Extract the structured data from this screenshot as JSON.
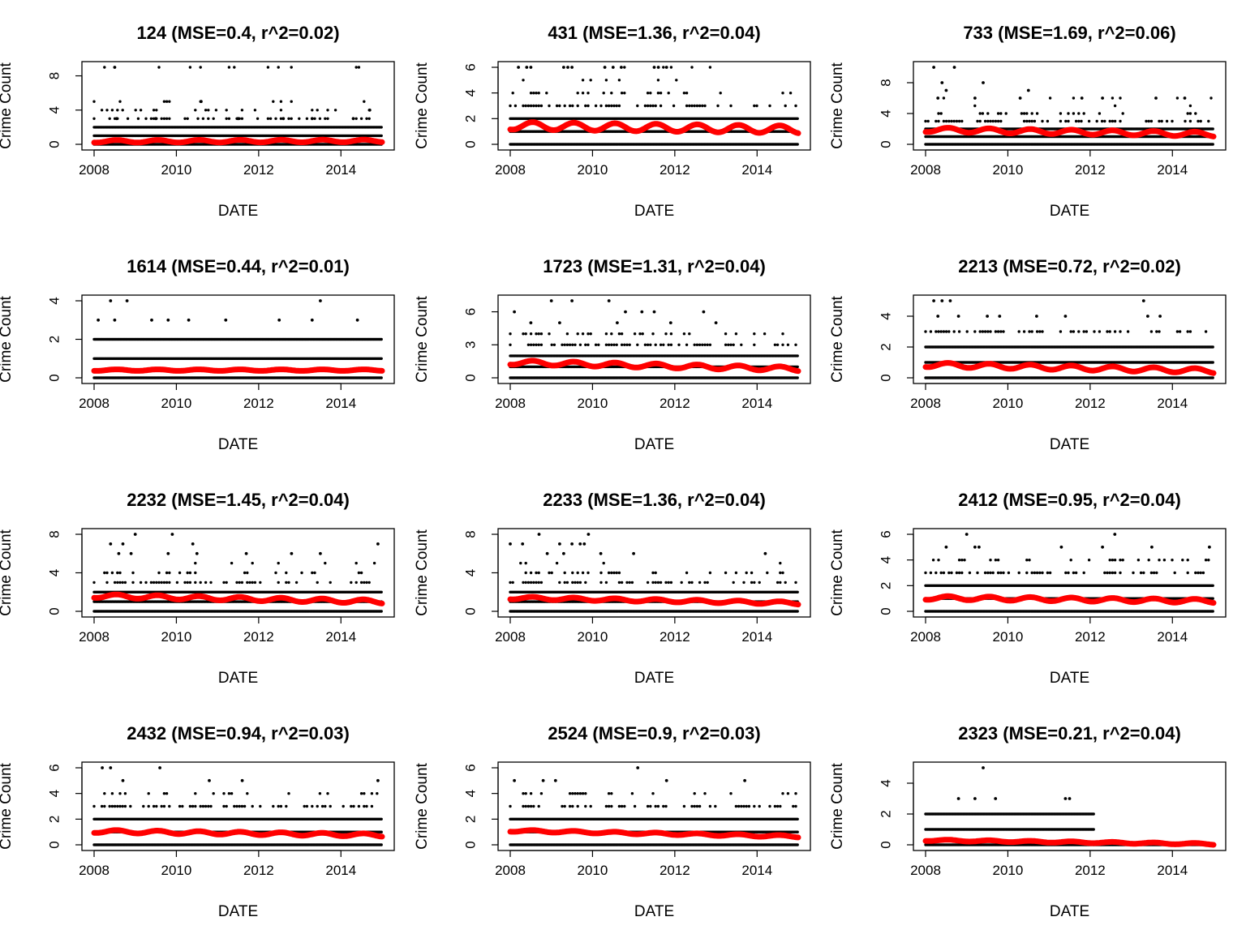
{
  "chart_data": [
    {
      "type": "scatter",
      "title": "124 (MSE=0.4, r^2=0.02)",
      "xlabel": "DATE",
      "ylabel": "Crime Count",
      "xlim": [
        2008,
        2015
      ],
      "ylim": [
        0,
        9
      ],
      "xticks": [
        2008,
        2010,
        2012,
        2014
      ],
      "xtick_labels": [
        "2008",
        "2010",
        "2012",
        "2014"
      ],
      "yticks": [
        0,
        4,
        8
      ],
      "ytick_labels": [
        "0",
        "4",
        "8"
      ],
      "points_color": "#000000",
      "fit_color": "#ff0000",
      "count_levels": [
        0,
        1,
        2,
        3,
        4,
        5,
        9
      ],
      "outliers": [
        [
          2008.5,
          9
        ],
        [
          2010.6,
          5
        ],
        [
          2014.7,
          4
        ],
        [
          2008.55,
          3
        ],
        [
          2009.5,
          3
        ],
        [
          2011.5,
          3
        ],
        [
          2012.6,
          3
        ],
        [
          2013.3,
          3
        ],
        [
          2014.3,
          3
        ]
      ],
      "fit": {
        "base_start": 0.35,
        "base_end": 0.4,
        "amplitude": 0.15,
        "period_years": 1.0
      }
    },
    {
      "type": "scatter",
      "title": "431 (MSE=1.36, r^2=0.04)",
      "xlabel": "DATE",
      "ylabel": "Crime Count",
      "xlim": [
        2008,
        2015
      ],
      "ylim": [
        0,
        6
      ],
      "xticks": [
        2008,
        2010,
        2012,
        2014
      ],
      "xtick_labels": [
        "2008",
        "2010",
        "2012",
        "2014"
      ],
      "yticks": [
        0,
        2,
        4,
        6
      ],
      "ytick_labels": [
        "0",
        "2",
        "4",
        "6"
      ],
      "points_color": "#000000",
      "fit_color": "#ff0000",
      "count_levels": [
        0,
        1,
        2,
        3,
        4,
        5,
        6
      ],
      "outliers": [
        [
          2008.2,
          6
        ],
        [
          2008.4,
          6
        ],
        [
          2008.5,
          6
        ],
        [
          2009.3,
          6
        ],
        [
          2009.4,
          6
        ],
        [
          2009.5,
          6
        ],
        [
          2010.3,
          6
        ],
        [
          2010.5,
          6
        ],
        [
          2010.7,
          6
        ],
        [
          2011.5,
          6
        ],
        [
          2011.6,
          6
        ],
        [
          2011.8,
          6
        ]
      ],
      "fit": {
        "base_start": 1.45,
        "base_end": 1.15,
        "amplitude": 0.3,
        "period_years": 1.0
      }
    },
    {
      "type": "scatter",
      "title": "733 (MSE=1.69, r^2=0.06)",
      "xlabel": "DATE",
      "ylabel": "Crime Count",
      "xlim": [
        2008,
        2015
      ],
      "ylim": [
        0,
        10
      ],
      "xticks": [
        2008,
        2010,
        2012,
        2014
      ],
      "xtick_labels": [
        "2008",
        "2010",
        "2012",
        "2014"
      ],
      "yticks": [
        0,
        4,
        8
      ],
      "ytick_labels": [
        "0",
        "4",
        "8"
      ],
      "points_color": "#000000",
      "fit_color": "#ff0000",
      "count_levels": [
        0,
        1,
        2,
        3,
        4,
        5,
        6
      ],
      "outliers": [
        [
          2008.2,
          10
        ],
        [
          2008.7,
          10
        ],
        [
          2008.4,
          8
        ],
        [
          2009.4,
          8
        ],
        [
          2008.5,
          7
        ],
        [
          2010.5,
          7
        ],
        [
          2008.3,
          6
        ],
        [
          2009.2,
          6
        ],
        [
          2010.3,
          6
        ],
        [
          2011.8,
          6
        ],
        [
          2012.3,
          6
        ],
        [
          2013.6,
          6
        ],
        [
          2014.3,
          6
        ]
      ],
      "fit": {
        "base_start": 1.9,
        "base_end": 1.3,
        "amplitude": 0.3,
        "period_years": 1.0
      }
    },
    {
      "type": "scatter",
      "title": "1614 (MSE=0.44, r^2=0.01)",
      "xlabel": "DATE",
      "ylabel": "Crime Count",
      "xlim": [
        2008,
        2015
      ],
      "ylim": [
        0,
        4
      ],
      "xticks": [
        2008,
        2010,
        2012,
        2014
      ],
      "xtick_labels": [
        "2008",
        "2010",
        "2012",
        "2014"
      ],
      "yticks": [
        0,
        2,
        4
      ],
      "ytick_labels": [
        "0",
        "2",
        "4"
      ],
      "points_color": "#000000",
      "fit_color": "#ff0000",
      "count_levels": [
        0,
        1,
        2
      ],
      "outliers": [
        [
          2008.4,
          4
        ],
        [
          2008.8,
          4
        ],
        [
          2013.5,
          4
        ],
        [
          2008.1,
          3
        ],
        [
          2008.5,
          3
        ],
        [
          2009.4,
          3
        ],
        [
          2009.8,
          3
        ],
        [
          2010.3,
          3
        ],
        [
          2011.2,
          3
        ],
        [
          2012.5,
          3
        ],
        [
          2013.3,
          3
        ],
        [
          2014.4,
          3
        ]
      ],
      "fit": {
        "base_start": 0.4,
        "base_end": 0.4,
        "amplitude": 0.04,
        "period_years": 1.0
      }
    },
    {
      "type": "scatter",
      "title": "1723 (MSE=1.31, r^2=0.04)",
      "xlabel": "DATE",
      "ylabel": "Crime Count",
      "xlim": [
        2008,
        2015
      ],
      "ylim": [
        0,
        7
      ],
      "xticks": [
        2008,
        2010,
        2012,
        2014
      ],
      "xtick_labels": [
        "2008",
        "2010",
        "2012",
        "2014"
      ],
      "yticks": [
        0,
        3,
        6
      ],
      "ytick_labels": [
        "0",
        "3",
        "6"
      ],
      "points_color": "#000000",
      "fit_color": "#ff0000",
      "count_levels": [
        0,
        1,
        2,
        3,
        4
      ],
      "outliers": [
        [
          2009.0,
          7
        ],
        [
          2009.5,
          7
        ],
        [
          2010.4,
          7
        ],
        [
          2008.1,
          6
        ],
        [
          2010.8,
          6
        ],
        [
          2011.2,
          6
        ],
        [
          2011.5,
          6
        ],
        [
          2012.7,
          6
        ],
        [
          2008.5,
          5
        ],
        [
          2009.2,
          5
        ],
        [
          2010.6,
          5
        ],
        [
          2011.9,
          5
        ],
        [
          2013.0,
          5
        ]
      ],
      "fit": {
        "base_start": 1.4,
        "base_end": 0.8,
        "amplitude": 0.2,
        "period_years": 1.0
      }
    },
    {
      "type": "scatter",
      "title": "2213 (MSE=0.72, r^2=0.02)",
      "xlabel": "DATE",
      "ylabel": "Crime Count",
      "xlim": [
        2008,
        2015
      ],
      "ylim": [
        0,
        5
      ],
      "xticks": [
        2008,
        2010,
        2012,
        2014
      ],
      "xtick_labels": [
        "2008",
        "2010",
        "2012",
        "2014"
      ],
      "yticks": [
        0,
        2,
        4
      ],
      "ytick_labels": [
        "0",
        "2",
        "4"
      ],
      "points_color": "#000000",
      "fit_color": "#ff0000",
      "count_levels": [
        0,
        1,
        2,
        3
      ],
      "outliers": [
        [
          2008.2,
          5
        ],
        [
          2008.4,
          5
        ],
        [
          2008.6,
          5
        ],
        [
          2013.3,
          5
        ],
        [
          2008.3,
          4
        ],
        [
          2008.8,
          4
        ],
        [
          2009.5,
          4
        ],
        [
          2009.8,
          4
        ],
        [
          2010.7,
          4
        ],
        [
          2011.4,
          4
        ],
        [
          2013.4,
          4
        ],
        [
          2013.7,
          4
        ]
      ],
      "fit": {
        "base_start": 0.85,
        "base_end": 0.45,
        "amplitude": 0.15,
        "period_years": 1.0
      }
    },
    {
      "type": "scatter",
      "title": "2232 (MSE=1.45, r^2=0.04)",
      "xlabel": "DATE",
      "ylabel": "Crime Count",
      "xlim": [
        2008,
        2015
      ],
      "ylim": [
        0,
        8
      ],
      "xticks": [
        2008,
        2010,
        2012,
        2014
      ],
      "xtick_labels": [
        "2008",
        "2010",
        "2012",
        "2014"
      ],
      "yticks": [
        0,
        4,
        8
      ],
      "ytick_labels": [
        "0",
        "4",
        "8"
      ],
      "points_color": "#000000",
      "fit_color": "#ff0000",
      "count_levels": [
        0,
        1,
        2,
        3,
        4,
        5
      ],
      "outliers": [
        [
          2009.0,
          8
        ],
        [
          2009.9,
          8
        ],
        [
          2008.4,
          7
        ],
        [
          2008.7,
          7
        ],
        [
          2010.4,
          7
        ],
        [
          2014.9,
          7
        ],
        [
          2008.6,
          6
        ],
        [
          2008.9,
          6
        ],
        [
          2009.8,
          6
        ],
        [
          2010.5,
          6
        ],
        [
          2011.7,
          6
        ],
        [
          2012.8,
          6
        ],
        [
          2013.5,
          6
        ]
      ],
      "fit": {
        "base_start": 1.6,
        "base_end": 1.0,
        "amplitude": 0.2,
        "period_years": 1.0
      }
    },
    {
      "type": "scatter",
      "title": "2233 (MSE=1.36, r^2=0.04)",
      "xlabel": "DATE",
      "ylabel": "Crime Count",
      "xlim": [
        2008,
        2015
      ],
      "ylim": [
        0,
        8
      ],
      "xticks": [
        2008,
        2010,
        2012,
        2014
      ],
      "xtick_labels": [
        "2008",
        "2010",
        "2012",
        "2014"
      ],
      "yticks": [
        0,
        4,
        8
      ],
      "ytick_labels": [
        "0",
        "4",
        "8"
      ],
      "points_color": "#000000",
      "fit_color": "#ff0000",
      "count_levels": [
        0,
        1,
        2,
        3,
        4,
        5
      ],
      "outliers": [
        [
          2009.9,
          8
        ],
        [
          2008.7,
          8
        ],
        [
          2008.0,
          7
        ],
        [
          2008.3,
          7
        ],
        [
          2009.2,
          7
        ],
        [
          2009.5,
          7
        ],
        [
          2009.7,
          7
        ],
        [
          2009.8,
          7
        ],
        [
          2008.9,
          6
        ],
        [
          2009.3,
          6
        ],
        [
          2010.2,
          6
        ],
        [
          2011.0,
          6
        ],
        [
          2014.2,
          6
        ]
      ],
      "fit": {
        "base_start": 1.4,
        "base_end": 0.85,
        "amplitude": 0.15,
        "period_years": 1.0
      }
    },
    {
      "type": "scatter",
      "title": "2412 (MSE=0.95, r^2=0.04)",
      "xlabel": "DATE",
      "ylabel": "Crime Count",
      "xlim": [
        2008,
        2015
      ],
      "ylim": [
        0,
        6
      ],
      "xticks": [
        2008,
        2010,
        2012,
        2014
      ],
      "xtick_labels": [
        "2008",
        "2010",
        "2012",
        "2014"
      ],
      "yticks": [
        0,
        2,
        4,
        6
      ],
      "ytick_labels": [
        "0",
        "2",
        "4",
        "6"
      ],
      "points_color": "#000000",
      "fit_color": "#ff0000",
      "count_levels": [
        0,
        1,
        2,
        3,
        4
      ],
      "outliers": [
        [
          2009.0,
          6
        ],
        [
          2012.6,
          6
        ],
        [
          2008.5,
          5
        ],
        [
          2009.2,
          5
        ],
        [
          2009.3,
          5
        ],
        [
          2011.3,
          5
        ],
        [
          2012.3,
          5
        ],
        [
          2013.5,
          5
        ],
        [
          2014.9,
          5
        ]
      ],
      "fit": {
        "base_start": 1.05,
        "base_end": 0.8,
        "amplitude": 0.15,
        "period_years": 1.0
      }
    },
    {
      "type": "scatter",
      "title": "2432 (MSE=0.94, r^2=0.03)",
      "xlabel": "DATE",
      "ylabel": "Crime Count",
      "xlim": [
        2008,
        2015
      ],
      "ylim": [
        0,
        6
      ],
      "xticks": [
        2008,
        2010,
        2012,
        2014
      ],
      "xtick_labels": [
        "2008",
        "2010",
        "2012",
        "2014"
      ],
      "yticks": [
        0,
        2,
        4,
        6
      ],
      "ytick_labels": [
        "0",
        "2",
        "4",
        "6"
      ],
      "points_color": "#000000",
      "fit_color": "#ff0000",
      "count_levels": [
        0,
        1,
        2,
        3,
        4
      ],
      "outliers": [
        [
          2008.2,
          6
        ],
        [
          2008.4,
          6
        ],
        [
          2009.6,
          6
        ],
        [
          2010.8,
          5
        ],
        [
          2011.6,
          5
        ],
        [
          2014.9,
          5
        ],
        [
          2008.7,
          5
        ]
      ],
      "fit": {
        "base_start": 1.05,
        "base_end": 0.75,
        "amplitude": 0.12,
        "period_years": 1.0
      }
    },
    {
      "type": "scatter",
      "title": "2524 (MSE=0.9, r^2=0.03)",
      "xlabel": "DATE",
      "ylabel": "Crime Count",
      "xlim": [
        2008,
        2015
      ],
      "ylim": [
        0,
        6
      ],
      "xticks": [
        2008,
        2010,
        2012,
        2014
      ],
      "xtick_labels": [
        "2008",
        "2010",
        "2012",
        "2014"
      ],
      "yticks": [
        0,
        2,
        4,
        6
      ],
      "ytick_labels": [
        "0",
        "2",
        "4",
        "6"
      ],
      "points_color": "#000000",
      "fit_color": "#ff0000",
      "count_levels": [
        0,
        1,
        2,
        3,
        4
      ],
      "outliers": [
        [
          2011.1,
          6
        ],
        [
          2008.1,
          5
        ],
        [
          2008.8,
          5
        ],
        [
          2009.1,
          5
        ],
        [
          2011.8,
          5
        ],
        [
          2013.7,
          5
        ]
      ],
      "fit": {
        "base_start": 1.1,
        "base_end": 0.65,
        "amplitude": 0.08,
        "period_years": 1.0
      }
    },
    {
      "type": "scatter",
      "title": "2323 (MSE=0.21, r^2=0.04)",
      "xlabel": "DATE",
      "ylabel": "Crime Count",
      "xlim": [
        2008,
        2015
      ],
      "ylim": [
        0,
        5
      ],
      "xticks": [
        2008,
        2010,
        2012,
        2014
      ],
      "xtick_labels": [
        "2008",
        "2010",
        "2012",
        "2014"
      ],
      "yticks": [
        0,
        2,
        4
      ],
      "ytick_labels": [
        "0",
        "2",
        "4"
      ],
      "points_color": "#000000",
      "fit_color": "#ff0000",
      "count_levels": [
        0,
        1,
        2
      ],
      "count_levels_end": 2012.1,
      "outliers": [
        [
          2009.4,
          5
        ],
        [
          2008.8,
          3
        ],
        [
          2009.2,
          3
        ],
        [
          2009.7,
          3
        ],
        [
          2011.4,
          3
        ],
        [
          2011.5,
          3
        ]
      ],
      "fit": {
        "base_start": 0.3,
        "base_end": 0.05,
        "amplitude": 0.05,
        "period_years": 1.0
      }
    }
  ]
}
